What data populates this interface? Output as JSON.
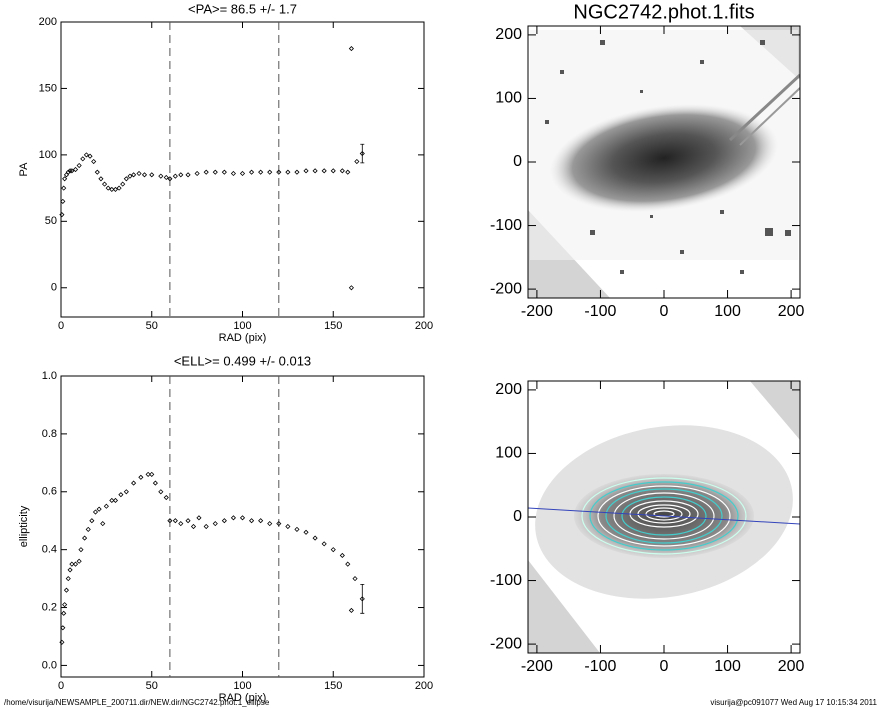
{
  "chart_data": [
    {
      "type": "scatter",
      "title": "<PA>=  86.5 +/-   1.7",
      "x_label": "RAD (pix)",
      "y_label": "PA",
      "xlim": [
        0,
        200
      ],
      "ylim": [
        -22,
        200
      ],
      "xticks": [
        0,
        50,
        100,
        150,
        200
      ],
      "yticks": [
        0,
        50,
        100,
        150,
        200
      ],
      "vlines": [
        60,
        120
      ],
      "color": "#000000",
      "series": [
        {
          "x": [
            0.5,
            1,
            1.5,
            2,
            3,
            4,
            5,
            6,
            8,
            10,
            12,
            14,
            16,
            18,
            20,
            22,
            24,
            26,
            28,
            30,
            32,
            34,
            36,
            38,
            40,
            43,
            46,
            50,
            55,
            58,
            60,
            63,
            66,
            70,
            75,
            80,
            85,
            90,
            95,
            100,
            105,
            110,
            115,
            120,
            125,
            130,
            135,
            140,
            145,
            150,
            155,
            158
          ],
          "values": [
            55,
            65,
            75,
            82,
            85,
            87,
            88,
            88,
            89,
            92,
            97,
            100,
            99,
            95,
            87,
            82,
            78,
            75,
            74,
            74,
            75,
            78,
            82,
            84,
            85,
            86,
            85,
            85,
            84,
            83,
            82,
            84,
            85,
            85,
            86,
            87,
            87,
            87,
            86,
            86,
            87,
            87,
            87,
            87,
            87,
            87,
            88,
            88,
            88,
            88,
            88,
            87
          ]
        },
        {
          "x": [
            160,
            160,
            163
          ],
          "values": [
            180,
            0,
            95
          ]
        },
        {
          "x": [
            166
          ],
          "values": [
            101
          ],
          "errors": [
            7
          ]
        }
      ]
    },
    {
      "type": "scatter",
      "title": "<ELL>= 0.499 +/-  0.013",
      "x_label": "RAD (pix)",
      "y_label": "ellipticity",
      "xlim": [
        0,
        200
      ],
      "ylim": [
        -0.04,
        1.0
      ],
      "xticks": [
        0,
        50,
        100,
        150,
        200
      ],
      "yticks": [
        {
          "value": 0,
          "label": "0.0"
        },
        0.2,
        0.4,
        0.6,
        0.8,
        {
          "value": 1,
          "label": "1.0"
        }
      ],
      "vlines": [
        60,
        120
      ],
      "color": "#000000",
      "series": [
        {
          "x": [
            0.5,
            1,
            1.5,
            2,
            3,
            4,
            5,
            6,
            8,
            10,
            11,
            13,
            15,
            17,
            19,
            21,
            23,
            25,
            28,
            30,
            33,
            36,
            40,
            44,
            48,
            50,
            52,
            55,
            58,
            60,
            63,
            66,
            70,
            73,
            76,
            80,
            85,
            90,
            95,
            100,
            105,
            110,
            115,
            120,
            125,
            130,
            135,
            140,
            145,
            150,
            155,
            158,
            162
          ],
          "values": [
            0.08,
            0.13,
            0.18,
            0.21,
            0.26,
            0.3,
            0.33,
            0.35,
            0.35,
            0.36,
            0.4,
            0.44,
            0.47,
            0.5,
            0.53,
            0.54,
            0.49,
            0.55,
            0.57,
            0.57,
            0.59,
            0.6,
            0.63,
            0.65,
            0.66,
            0.66,
            0.63,
            0.6,
            0.58,
            0.5,
            0.5,
            0.49,
            0.5,
            0.48,
            0.51,
            0.48,
            0.49,
            0.5,
            0.51,
            0.51,
            0.5,
            0.5,
            0.49,
            0.49,
            0.48,
            0.47,
            0.46,
            0.44,
            0.42,
            0.4,
            0.38,
            0.35,
            0.3
          ]
        },
        {
          "x": [
            160
          ],
          "values": [
            0.19
          ]
        },
        {
          "x": [
            166
          ],
          "values": [
            0.23
          ],
          "errors": [
            0.05
          ]
        }
      ]
    },
    {
      "type": "image",
      "title": "NGC2742.phot.1.fits",
      "xlim": [
        -214,
        214
      ],
      "ylim": [
        -214,
        214
      ],
      "xticks": [
        -200,
        -100,
        0,
        100,
        200
      ],
      "yticks": [
        -200,
        -100,
        0,
        100,
        200
      ]
    },
    {
      "type": "image",
      "xlim": [
        -214,
        214
      ],
      "ylim": [
        -214,
        214
      ],
      "xticks": [
        -200,
        -100,
        0,
        100,
        200
      ],
      "yticks": [
        -200,
        -100,
        0,
        100,
        200
      ]
    }
  ],
  "footer": {
    "left": "/home/visurija/NEWSAMPLE_200711.dir/NEW.dir/NGC2742.phot.1_ellipse",
    "right": "visurija@pc091077  Wed Aug 17 10:15:34 2011"
  }
}
